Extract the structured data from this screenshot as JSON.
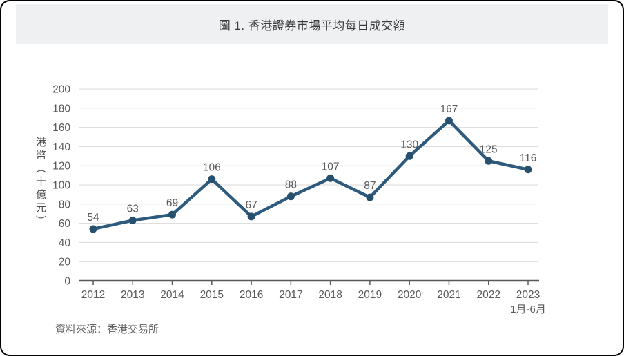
{
  "header": {
    "title": "圖 1. 香港證券市場平均每日成交額"
  },
  "footer": {
    "source": "資料來源：香港交易所"
  },
  "chart_data": {
    "type": "line",
    "title": "圖 1. 香港證券市場平均每日成交額",
    "categories": [
      "2012",
      "2013",
      "2014",
      "2015",
      "2016",
      "2017",
      "2018",
      "2019",
      "2020",
      "2021",
      "2022",
      "2023"
    ],
    "values": [
      54,
      63,
      69,
      106,
      67,
      88,
      107,
      87,
      130,
      167,
      125,
      116
    ],
    "last_category_note": "1月-6月",
    "xlabel": "",
    "ylabel": "港幣（十億元）",
    "ylim": [
      0,
      200
    ],
    "ytick_step": 20,
    "grid": true,
    "legend": "none",
    "data_labels": true,
    "colors": {
      "line": "#2e5b7d",
      "marker": "#27506e",
      "grid": "#d9d9d9",
      "axis": "#595959",
      "tick_label": "#595959",
      "data_label": "#595959",
      "header_band": "#eef0f2",
      "title_text": "#3b3b3b"
    }
  }
}
